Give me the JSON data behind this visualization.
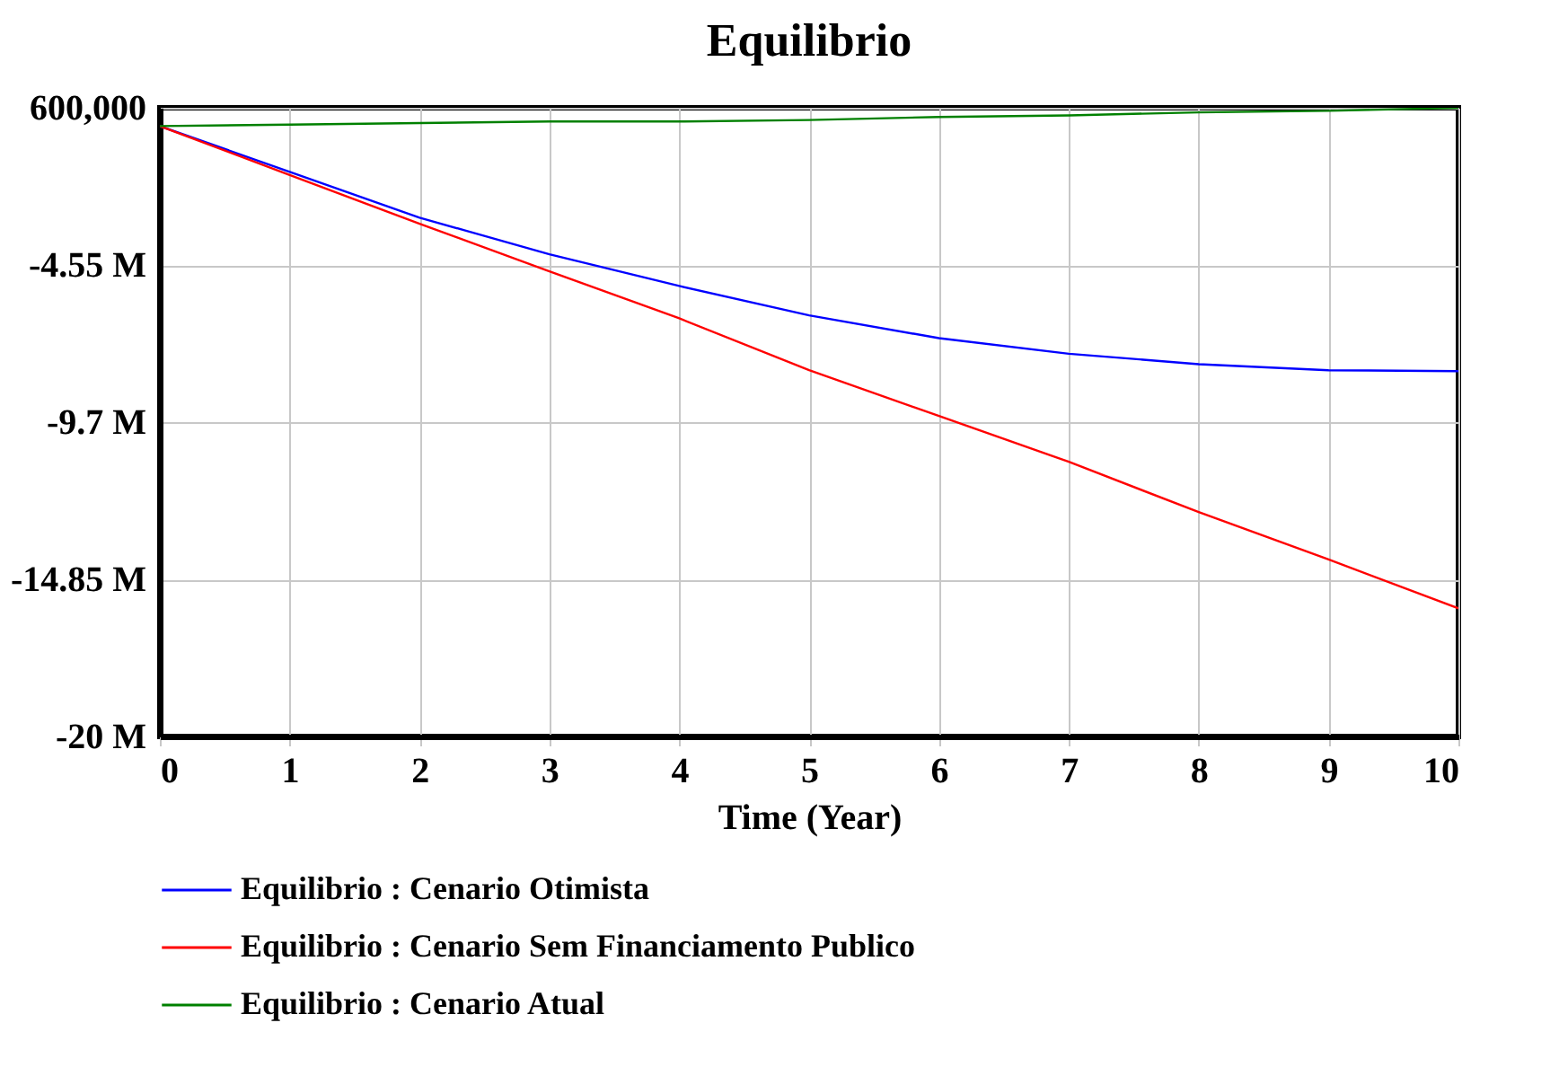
{
  "chart_data": {
    "type": "line",
    "title": "Equilibrio",
    "xlabel": "Time (Year)",
    "x": [
      0,
      1,
      2,
      3,
      4,
      5,
      6,
      7,
      8,
      9,
      10
    ],
    "series": [
      {
        "name": "Equilibrio : Cenario Otimista",
        "color": "#0000ff",
        "values": [
          0,
          -1500000,
          -3000000,
          -4200000,
          -5240000,
          -6200000,
          -6950000,
          -7460000,
          -7800000,
          -8000000,
          -8030000
        ]
      },
      {
        "name": "Equilibrio : Cenario Sem Financiamento Publico",
        "color": "#ff0000",
        "values": [
          0,
          -1600000,
          -3200000,
          -4760000,
          -6300000,
          -8000000,
          -9500000,
          -11000000,
          -12650000,
          -14200000,
          -15800000
        ]
      },
      {
        "name": "Equilibrio : Cenario Atual",
        "color": "#008000",
        "values": [
          0,
          50000,
          100000,
          150000,
          150000,
          200000,
          300000,
          350000,
          450000,
          500000,
          600000
        ]
      }
    ],
    "xlim": [
      0,
      10
    ],
    "xticks": [
      0,
      1,
      2,
      3,
      4,
      5,
      6,
      7,
      8,
      9,
      10
    ],
    "ylim": [
      -20000000,
      600000
    ],
    "yticks": [
      {
        "value": 600000,
        "label": "600,000"
      },
      {
        "value": -4550000,
        "label": "-4.55 M"
      },
      {
        "value": -9700000,
        "label": "-9.7 M"
      },
      {
        "value": -14850000,
        "label": "-14.85 M"
      },
      {
        "value": -20000000,
        "label": "-20 M"
      }
    ],
    "grid": true,
    "legend": "bottom"
  }
}
